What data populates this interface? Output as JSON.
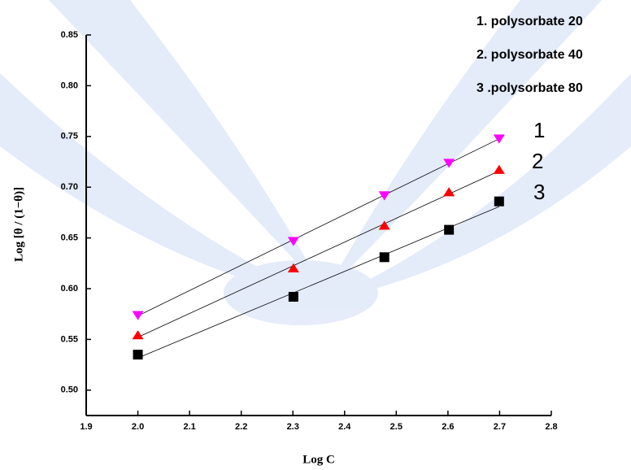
{
  "chart_data": {
    "type": "scatter",
    "x_label": "Log C",
    "y_label": "Log [θ / (1−θ)]",
    "xlim": [
      1.9,
      2.8
    ],
    "ylim": [
      0.475,
      0.85
    ],
    "xticks": [
      1.9,
      {
        "value": 2.0,
        "label": "2.0"
      },
      2.1,
      2.2,
      2.3,
      2.4,
      2.5,
      2.6,
      2.7,
      2.8
    ],
    "yticks": [
      {
        "value": 0.5,
        "label": "0.50"
      },
      0.55,
      {
        "value": 0.6,
        "label": "0.60"
      },
      0.65,
      {
        "value": 0.7,
        "label": "0.70"
      },
      0.75,
      {
        "value": 0.8,
        "label": "0.80"
      },
      0.85
    ],
    "fit_lines": true,
    "series": [
      {
        "name": "1. polysorbate 20",
        "label": "1",
        "color": "#ff00ff",
        "marker": "triangle-down",
        "x": [
          2.0,
          2.301,
          2.477,
          2.602,
          2.699
        ],
        "values": [
          0.574,
          0.647,
          0.692,
          0.724,
          0.748
        ]
      },
      {
        "name": "2. polysorbate 40",
        "label": "2",
        "color": "#ff0000",
        "marker": "triangle-up",
        "x": [
          2.0,
          2.301,
          2.477,
          2.602,
          2.699
        ],
        "values": [
          0.554,
          0.62,
          0.662,
          0.695,
          0.717
        ]
      },
      {
        "name": "3 .polysorbate 80",
        "label": "3",
        "color": "#000000",
        "marker": "square",
        "x": [
          2.0,
          2.301,
          2.477,
          2.602,
          2.699
        ],
        "values": [
          0.535,
          0.592,
          0.631,
          0.658,
          0.686
        ]
      }
    ]
  }
}
